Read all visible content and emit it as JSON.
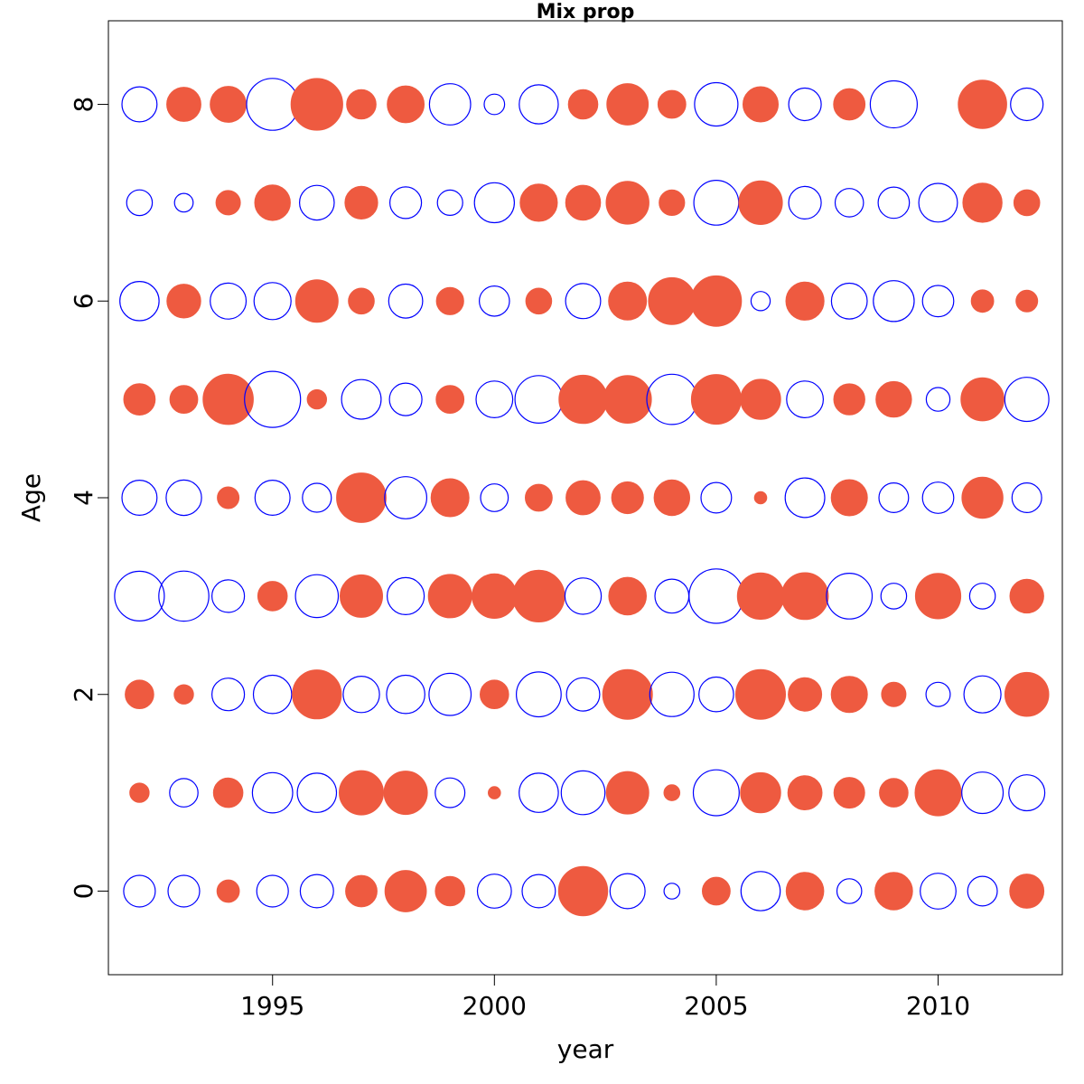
{
  "chart_data": {
    "type": "scatter",
    "subtype": "bubble",
    "title": "Mix prop",
    "xlabel": "year",
    "ylabel": "Age",
    "xlim": [
      1991.3,
      2012.8
    ],
    "ylim": [
      -0.85,
      8.85
    ],
    "x_ticks": [
      1995,
      2000,
      2005,
      2010
    ],
    "y_ticks": [
      0,
      2,
      4,
      6,
      8
    ],
    "x_tick_labels": [
      "1995",
      "2000",
      "2005",
      "2010"
    ],
    "y_tick_labels": [
      "0",
      "2",
      "4",
      "6",
      "8"
    ],
    "colors": {
      "positive": "#ee5a40",
      "negative": "#0000ff"
    },
    "legend": "none",
    "grid": false,
    "years": [
      1992,
      1993,
      1994,
      1995,
      1996,
      1997,
      1998,
      1999,
      2000,
      2001,
      2002,
      2003,
      2004,
      2005,
      2006,
      2007,
      2008,
      2009,
      2010,
      2011,
      2012
    ],
    "ages": [
      0,
      1,
      2,
      3,
      4,
      5,
      6,
      7,
      8
    ],
    "residuals": [
      [
        -0.41,
        -0.41,
        0.2,
        -0.41,
        -0.45,
        0.4,
        0.69,
        0.35,
        -0.47,
        -0.45,
        0.98,
        -0.5,
        -0.1,
        0.31,
        -0.63,
        0.57,
        -0.25,
        0.57,
        -0.52,
        -0.36,
        0.47
      ],
      [
        0.15,
        -0.33,
        0.35,
        -0.66,
        -0.63,
        0.79,
        0.76,
        -0.36,
        0.06,
        -0.63,
        -0.78,
        0.73,
        0.1,
        -0.86,
        0.65,
        0.47,
        0.38,
        0.33,
        0.86,
        -0.7,
        -0.53
      ],
      [
        0.33,
        0.15,
        -0.43,
        -0.6,
        0.97,
        -0.54,
        -0.6,
        -0.72,
        0.33,
        -0.82,
        -0.45,
        1.0,
        -0.8,
        -0.49,
        1.0,
        0.45,
        0.53,
        0.24,
        -0.24,
        -0.56,
        0.78
      ],
      [
        -1.01,
        -1.02,
        -0.43,
        0.35,
        -0.75,
        0.73,
        -0.56,
        0.76,
        0.8,
        1.08,
        -0.54,
        0.57,
        -0.47,
        -1.21,
        0.87,
        0.89,
        -0.85,
        -0.27,
        0.83,
        -0.27,
        0.46
      ],
      [
        -0.5,
        -0.51,
        0.19,
        -0.5,
        -0.34,
        0.99,
        -0.72,
        0.58,
        -0.31,
        0.29,
        0.47,
        0.41,
        0.51,
        -0.38,
        0.06,
        -0.64,
        0.53,
        -0.36,
        -0.4,
        0.68,
        -0.36
      ],
      [
        0.4,
        0.31,
        1.02,
        -1.28,
        0.15,
        -0.64,
        -0.43,
        0.31,
        -0.55,
        -0.92,
        0.94,
        0.92,
        -1.03,
        1.0,
        0.65,
        -0.55,
        0.39,
        0.51,
        -0.23,
        0.75,
        -0.79
      ],
      [
        -0.63,
        0.46,
        -0.53,
        -0.56,
        0.73,
        0.27,
        -0.47,
        0.3,
        -0.37,
        0.27,
        -0.5,
        0.58,
        0.89,
        1.03,
        -0.15,
        0.59,
        -0.52,
        -0.68,
        -0.4,
        0.2,
        0.19
      ],
      [
        -0.27,
        -0.14,
        0.24,
        0.51,
        -0.49,
        0.43,
        -0.41,
        -0.26,
        -0.65,
        0.56,
        0.49,
        0.74,
        0.26,
        -0.82,
        0.77,
        -0.43,
        -0.33,
        -0.4,
        -0.61,
        0.62,
        0.27
      ],
      [
        -0.5,
        0.47,
        0.52,
        -1.1,
        1.08,
        0.35,
        0.55,
        -0.69,
        -0.17,
        -0.62,
        0.35,
        0.69,
        0.31,
        -0.77,
        0.5,
        -0.43,
        0.4,
        -0.9,
        0.0,
        0.95,
        -0.43
      ]
    ]
  }
}
